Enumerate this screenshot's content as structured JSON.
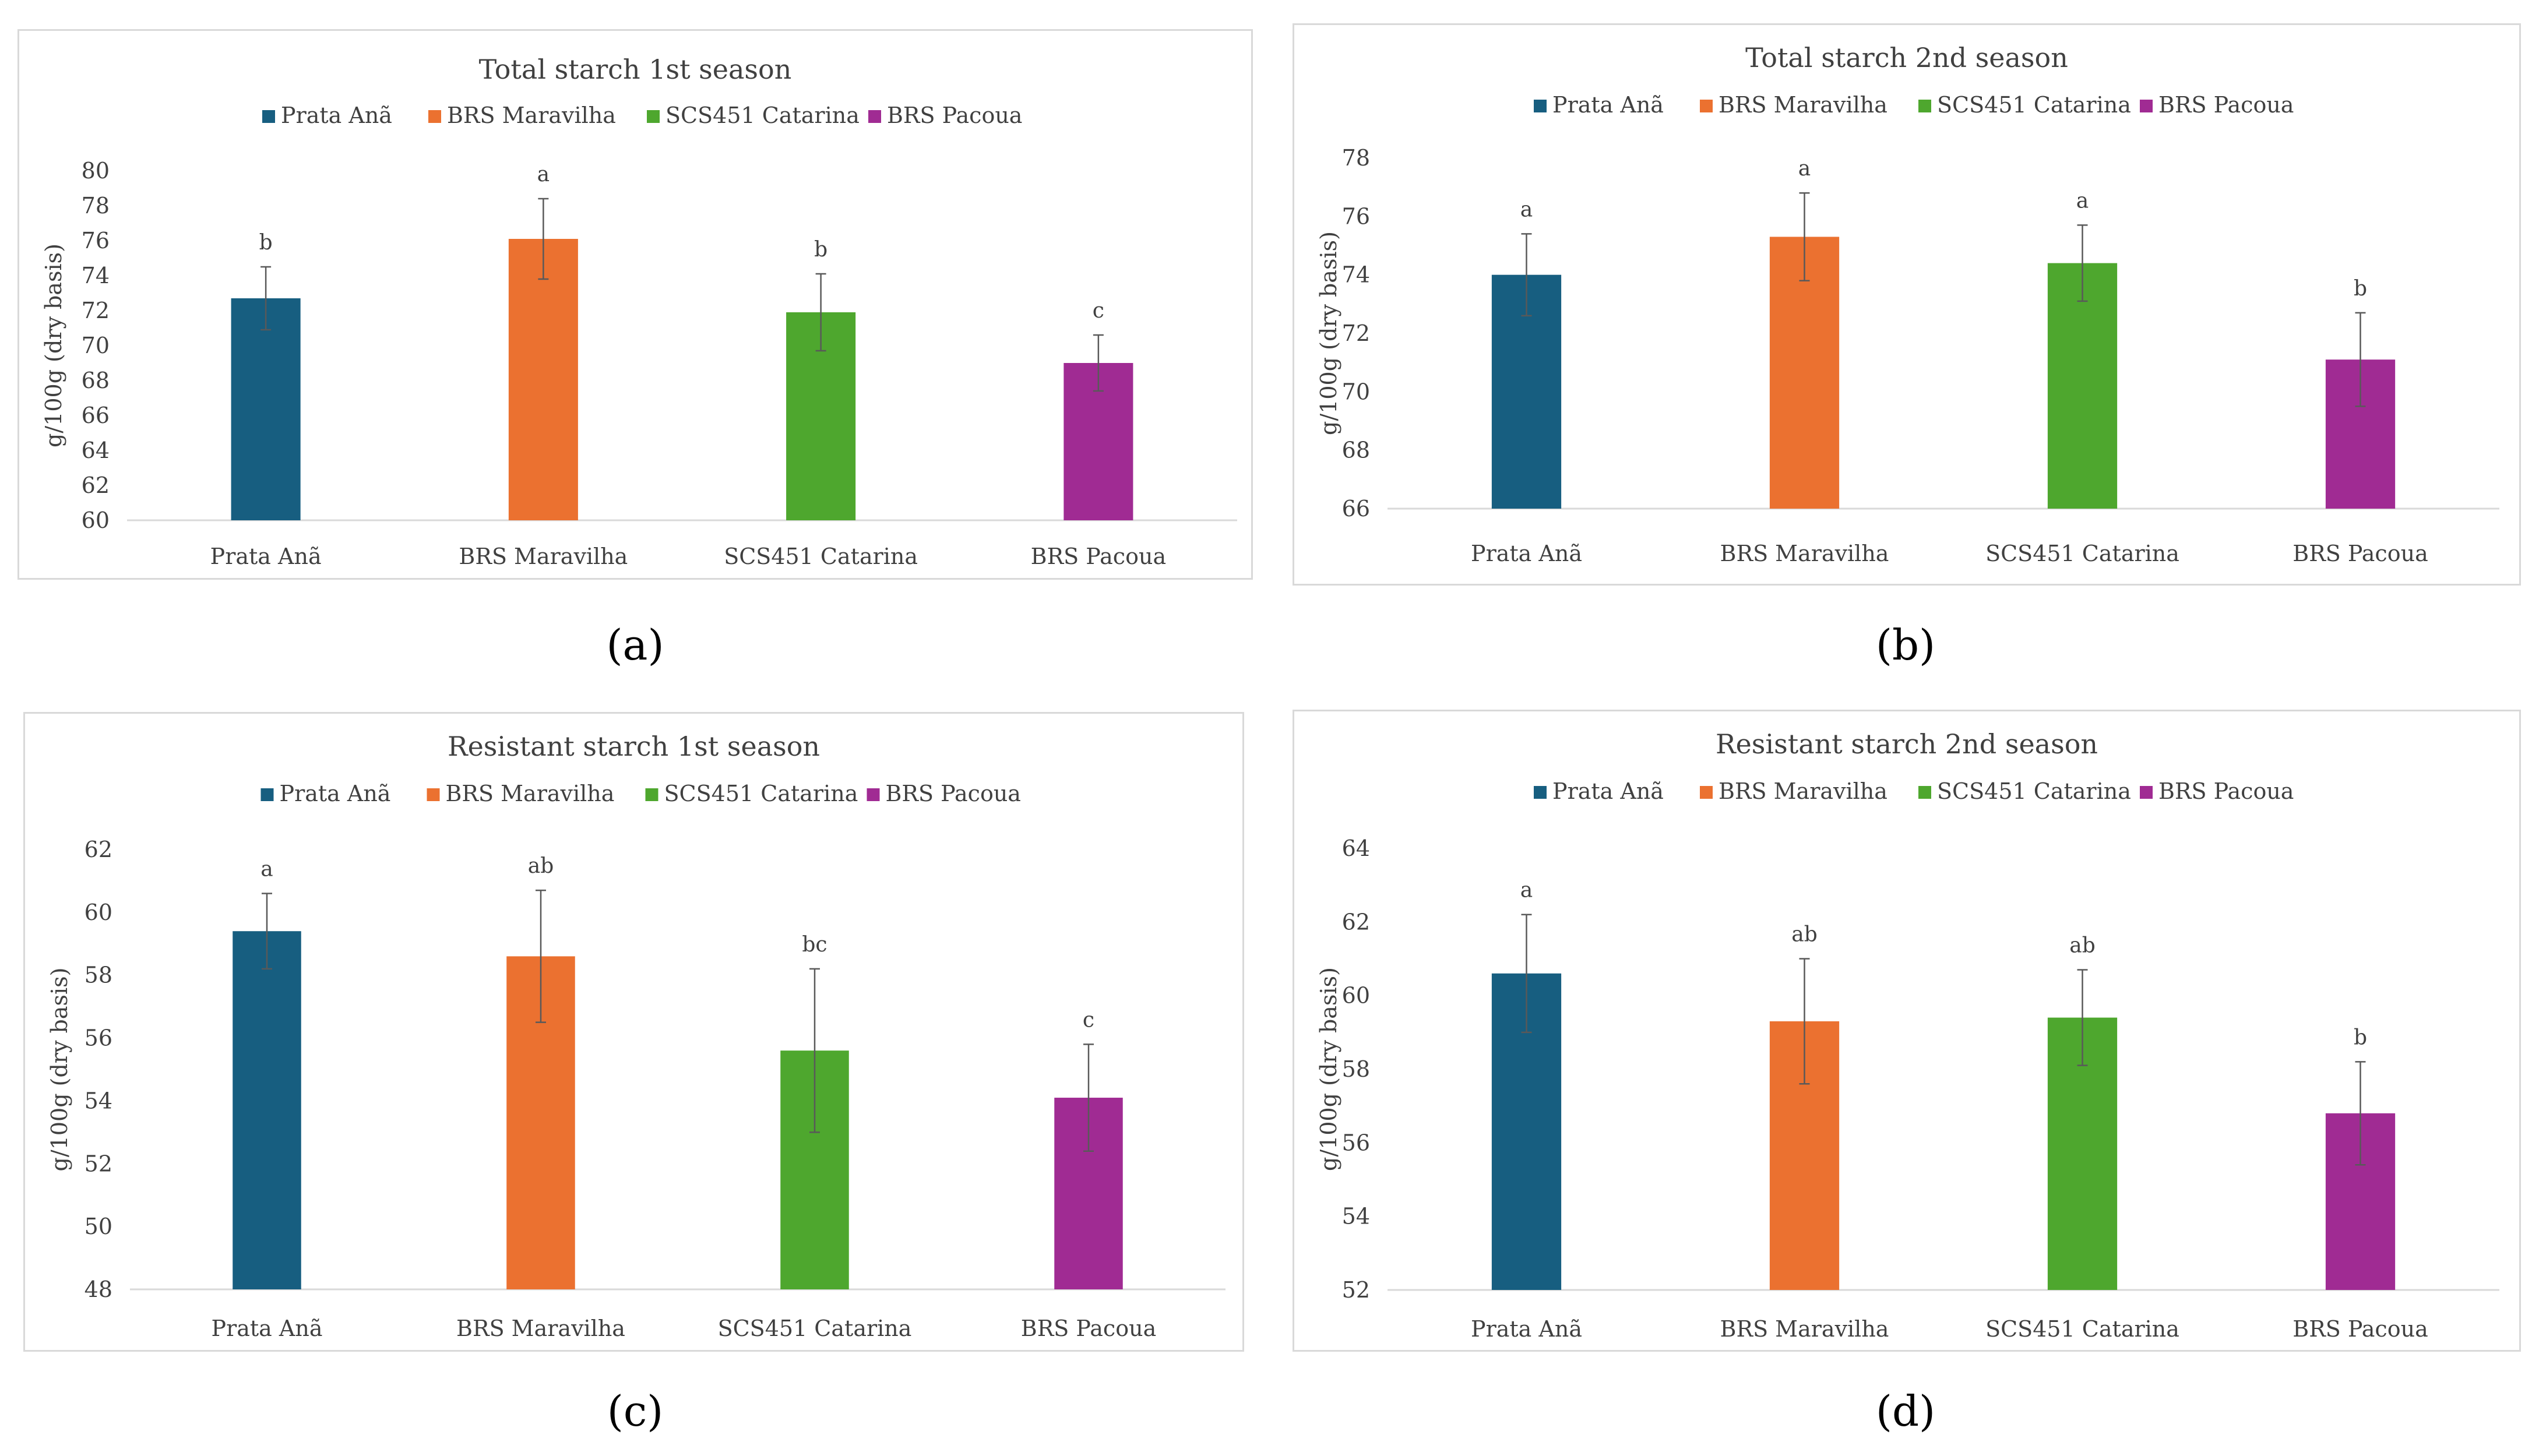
{
  "chart_data": [
    {
      "type": "bar",
      "label": "a",
      "title": "Total starch   1st season",
      "ylabel": "g/100g (dry basis)",
      "xlabel": "",
      "ylim": [
        60,
        80
      ],
      "yticks": [
        60,
        62,
        64,
        66,
        68,
        70,
        72,
        74,
        76,
        78,
        80
      ],
      "categories": [
        "Prata Anã",
        "BRS Maravilha",
        "SCS451 Catarina",
        "BRS Pacoua"
      ],
      "values": [
        72.7,
        76.1,
        71.9,
        69.0
      ],
      "errors": [
        1.8,
        2.3,
        2.2,
        1.6
      ],
      "letters": [
        "b",
        "a",
        "b",
        "c"
      ],
      "legend": [
        "Prata Anã",
        "BRS Maravilha",
        "SCS451 Catarina",
        "BRS Pacoua"
      ],
      "legend_position": "top"
    },
    {
      "type": "bar",
      "label": "b",
      "title": "Total starch   2nd season",
      "ylabel": "g/100g (dry basis)",
      "xlabel": "",
      "ylim": [
        66,
        78
      ],
      "yticks": [
        66,
        68,
        70,
        72,
        74,
        76,
        78
      ],
      "categories": [
        "Prata Anã",
        "BRS Maravilha",
        "SCS451 Catarina",
        "BRS Pacoua"
      ],
      "values": [
        74.0,
        75.3,
        74.4,
        71.1
      ],
      "errors": [
        1.4,
        1.5,
        1.3,
        1.6
      ],
      "letters": [
        "a",
        "a",
        "a",
        "b"
      ],
      "legend": [
        "Prata Anã",
        "BRS Maravilha",
        "SCS451 Catarina",
        "BRS Pacoua"
      ],
      "legend_position": "top"
    },
    {
      "type": "bar",
      "label": "c",
      "title": "Resistant starch   1st season",
      "ylabel": "g/100g (dry basis)",
      "xlabel": "",
      "ylim": [
        48,
        62
      ],
      "yticks": [
        48,
        50,
        52,
        54,
        56,
        58,
        60,
        62
      ],
      "categories": [
        "Prata Anã",
        "BRS Maravilha",
        "SCS451 Catarina",
        "BRS Pacoua"
      ],
      "values": [
        59.4,
        58.6,
        55.6,
        54.1
      ],
      "errors": [
        1.2,
        2.1,
        2.6,
        1.7
      ],
      "letters": [
        "a",
        "ab",
        "bc",
        "c"
      ],
      "legend": [
        "Prata Anã",
        "BRS Maravilha",
        "SCS451 Catarina",
        "BRS Pacoua"
      ],
      "legend_position": "top"
    },
    {
      "type": "bar",
      "label": "d",
      "title": "Resistant starch   2nd season",
      "ylabel": "g/100g (dry basis)",
      "xlabel": "",
      "ylim": [
        52,
        64
      ],
      "yticks": [
        52,
        54,
        56,
        58,
        60,
        62,
        64
      ],
      "categories": [
        "Prata Anã",
        "BRS Maravilha",
        "SCS451 Catarina",
        "BRS Pacoua"
      ],
      "values": [
        60.6,
        59.3,
        59.4,
        56.8
      ],
      "errors": [
        1.6,
        1.7,
        1.3,
        1.4
      ],
      "letters": [
        "a",
        "ab",
        "ab",
        "b"
      ],
      "legend": [
        "Prata Anã",
        "BRS Maravilha",
        "SCS451 Catarina",
        "BRS Pacoua"
      ],
      "legend_position": "top"
    }
  ],
  "colors": [
    "#175e80",
    "#eb7130",
    "#4ea72e",
    "#a02b93"
  ],
  "labels": [
    "(a)",
    "(b)",
    "(c)",
    "(d)"
  ]
}
